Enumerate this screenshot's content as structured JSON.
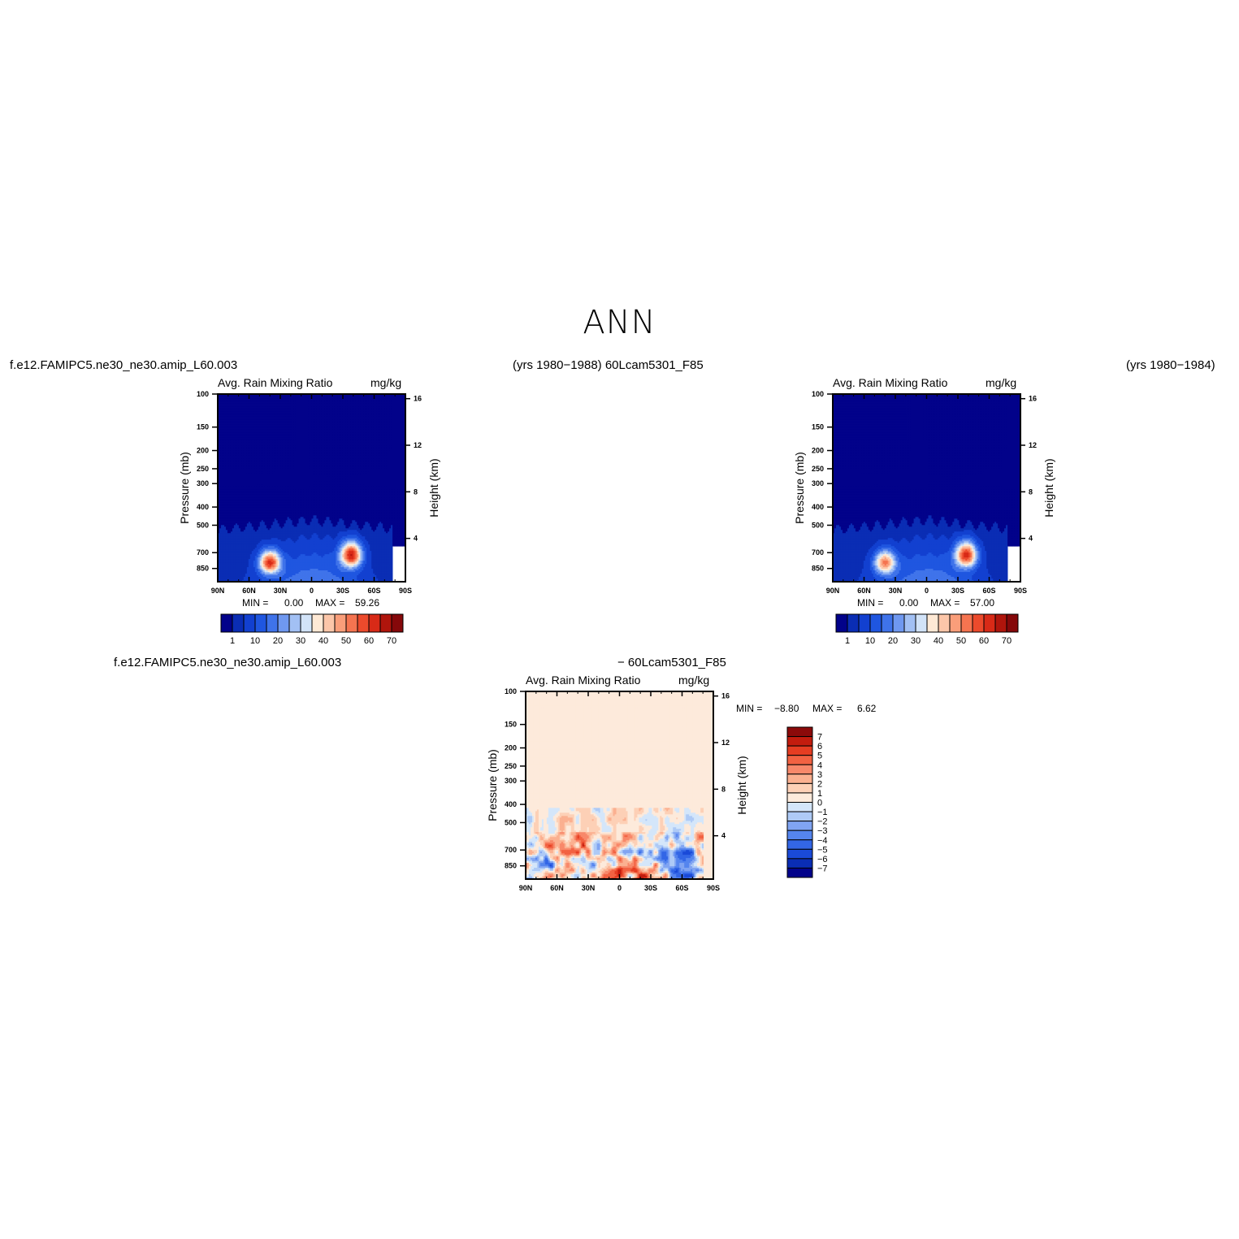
{
  "page": {
    "title": "ANN",
    "left_header": "f.e12.FAMIPC5.ne30_ne30.amip_L60.003",
    "center_header": "(yrs 1980−1988)  60Lcam5301_F85",
    "right_header": "(yrs 1980−1984)",
    "diff_left_header": "f.e12.FAMIPC5.ne30_ne30.amip_L60.003",
    "diff_right_header": "− 60Lcam5301_F85"
  },
  "colors": {
    "seq_palette": [
      "#02028a",
      "#0a2db4",
      "#1240d0",
      "#1f56e0",
      "#3f73ea",
      "#6f98f0",
      "#a2c0f4",
      "#d2e3f8",
      "#ffe9d5",
      "#fcc6a9",
      "#fa9e7a",
      "#f57450",
      "#ec4a2c",
      "#d82a17",
      "#b0150c",
      "#85080a"
    ],
    "div_palette": [
      "#02028a",
      "#0a2db4",
      "#1a4ad8",
      "#3366e6",
      "#5585ee",
      "#80a4f2",
      "#aecaf6",
      "#d4e6fa",
      "#fdeadb",
      "#fdd0b6",
      "#fbb090",
      "#f8886a",
      "#f26242",
      "#e53d22",
      "#c31c0e",
      "#8c0a0a"
    ]
  },
  "chart_data": [
    {
      "id": "case",
      "type": "heatmap",
      "title": "Avg. Rain Mixing Ratio",
      "units": "mg/kg",
      "xlabel": "",
      "ylabel": "Pressure (mb)",
      "y2label": "Height (km)",
      "x_ticks": [
        "90N",
        "60N",
        "30N",
        "0",
        "30S",
        "60S",
        "90S"
      ],
      "y_ticks": [
        100,
        150,
        200,
        250,
        300,
        400,
        500,
        700,
        850
      ],
      "y2_ticks": [
        16,
        12,
        8,
        4
      ],
      "y_scale": "log",
      "ylim": [
        1000,
        100
      ],
      "min_label": "MIN =",
      "min_value": "0.00",
      "max_label": "MAX =",
      "max_value": "59.26",
      "colorbar_labels": [
        "1",
        "10",
        "20",
        "30",
        "40",
        "50",
        "60",
        "70"
      ],
      "peaks": [
        {
          "lat": 40,
          "p": 790,
          "value": 55
        },
        {
          "lat": -38,
          "p": 720,
          "value": 59.26
        }
      ]
    },
    {
      "id": "control",
      "type": "heatmap",
      "title": "Avg. Rain Mixing Ratio",
      "units": "mg/kg",
      "xlabel": "",
      "ylabel": "Pressure (mb)",
      "y2label": "Height (km)",
      "x_ticks": [
        "90N",
        "60N",
        "30N",
        "0",
        "30S",
        "60S",
        "90S"
      ],
      "y_ticks": [
        100,
        150,
        200,
        250,
        300,
        400,
        500,
        700,
        850
      ],
      "y2_ticks": [
        16,
        12,
        8,
        4
      ],
      "y_scale": "log",
      "ylim": [
        1000,
        100
      ],
      "min_label": "MIN =",
      "min_value": "0.00",
      "max_label": "MAX =",
      "max_value": "57.00",
      "colorbar_labels": [
        "1",
        "10",
        "20",
        "30",
        "40",
        "50",
        "60",
        "70"
      ],
      "peaks": [
        {
          "lat": 40,
          "p": 790,
          "value": 45
        },
        {
          "lat": -38,
          "p": 720,
          "value": 57.0
        }
      ]
    },
    {
      "id": "difference",
      "type": "heatmap",
      "title": "Avg. Rain Mixing Ratio",
      "units": "mg/kg",
      "xlabel": "",
      "ylabel": "Pressure (mb)",
      "y2label": "Height (km)",
      "x_ticks": [
        "90N",
        "60N",
        "30N",
        "0",
        "30S",
        "60S",
        "90S"
      ],
      "y_ticks": [
        100,
        150,
        200,
        250,
        300,
        400,
        500,
        700,
        850
      ],
      "y2_ticks": [
        16,
        12,
        8,
        4
      ],
      "y_scale": "log",
      "ylim": [
        1000,
        100
      ],
      "min_label": "MIN =",
      "min_value": "−8.80",
      "max_label": "MAX =",
      "max_value": "6.62",
      "colorbar_labels": [
        "7",
        "6",
        "5",
        "4",
        "3",
        "2",
        "1",
        "0",
        "−1",
        "−2",
        "−3",
        "−4",
        "−5",
        "−6",
        "−7"
      ]
    }
  ]
}
